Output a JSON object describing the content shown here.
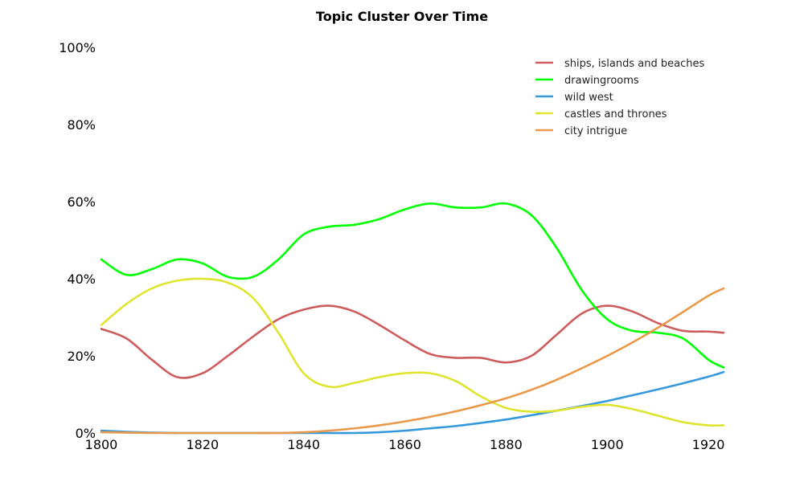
{
  "chart_data": {
    "type": "line",
    "title": "Topic Cluster Over Time",
    "xlabel": "",
    "ylabel": "",
    "xlim": [
      1800,
      1923
    ],
    "ylim": [
      0,
      100
    ],
    "x_ticks": [
      1800,
      1820,
      1840,
      1860,
      1880,
      1900,
      1920
    ],
    "x_tick_labels": [
      "1800",
      "1820",
      "1840",
      "1860",
      "1880",
      "1900",
      "1920"
    ],
    "y_ticks": [
      0,
      20,
      40,
      60,
      80,
      100
    ],
    "y_tick_labels": [
      "0%",
      "20%",
      "40%",
      "60%",
      "80%",
      "100%"
    ],
    "grid": false,
    "legend_position": "top-right",
    "x": [
      1800,
      1805,
      1810,
      1815,
      1820,
      1825,
      1830,
      1835,
      1840,
      1845,
      1850,
      1855,
      1860,
      1865,
      1870,
      1875,
      1880,
      1885,
      1890,
      1895,
      1900,
      1905,
      1910,
      1915,
      1920,
      1923
    ],
    "series": [
      {
        "name": "ships, islands and beaches",
        "color": "#cd5c5c",
        "values": [
          27.0,
          24.5,
          19.0,
          14.5,
          15.5,
          20.0,
          25.0,
          29.5,
          32.0,
          33.0,
          31.5,
          28.0,
          24.0,
          20.5,
          19.5,
          19.5,
          18.3,
          20.0,
          25.5,
          31.0,
          33.0,
          31.5,
          28.5,
          26.5,
          26.3,
          26.0
        ]
      },
      {
        "name": "drawingrooms",
        "color": "#00ff00",
        "values": [
          45.0,
          41.0,
          42.5,
          45.0,
          44.0,
          40.5,
          40.5,
          45.0,
          51.5,
          53.5,
          54.0,
          55.5,
          58.0,
          59.5,
          58.5,
          58.5,
          59.5,
          56.5,
          48.0,
          37.0,
          29.5,
          26.5,
          26.0,
          24.5,
          19.0,
          17.0
        ]
      },
      {
        "name": "wild west",
        "color": "#3498db",
        "values": [
          0.6,
          0.3,
          0.1,
          0.0,
          0.0,
          0.0,
          0.0,
          0.0,
          0.0,
          0.0,
          0.0,
          0.2,
          0.6,
          1.2,
          1.8,
          2.6,
          3.5,
          4.6,
          5.8,
          7.0,
          8.3,
          9.8,
          11.3,
          12.9,
          14.6,
          15.8
        ]
      },
      {
        "name": "castles and thrones",
        "color": "#dfe52f",
        "values": [
          28.0,
          33.5,
          37.5,
          39.5,
          40.0,
          39.0,
          35.0,
          26.0,
          15.5,
          12.0,
          13.0,
          14.5,
          15.5,
          15.5,
          13.5,
          9.5,
          6.5,
          5.5,
          5.8,
          6.8,
          7.3,
          6.2,
          4.5,
          2.8,
          2.0,
          2.0
        ]
      },
      {
        "name": "city intrigue",
        "color": "#e8994a",
        "values": [
          0.2,
          0.1,
          0.0,
          0.0,
          0.0,
          0.0,
          0.0,
          0.0,
          0.2,
          0.6,
          1.2,
          2.0,
          3.0,
          4.2,
          5.6,
          7.2,
          9.0,
          11.2,
          13.8,
          16.8,
          20.0,
          23.5,
          27.3,
          31.4,
          35.6,
          37.5
        ]
      }
    ]
  }
}
